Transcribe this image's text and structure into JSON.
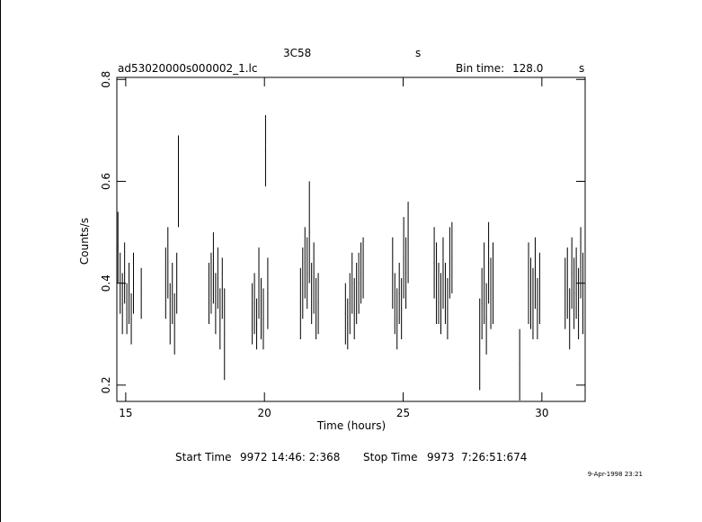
{
  "chart_data": {
    "type": "errorbar",
    "title": "3C58",
    "title_unit": "s",
    "file_name": "ad53020000s000002_1.lc",
    "bin_time_label": "Bin time:",
    "bin_time": "128.0",
    "bin_time_unit": "s",
    "x_label": "Time (hours)",
    "y_label": "Counts/s",
    "start_label": "Start Time",
    "start_time": "9972 14:46: 2:368",
    "stop_label": "Stop Time",
    "stop_time": "9973  7:26:51:674",
    "footer": "9-Apr-1998 23:21",
    "xlim": [
      14.68,
      31.56
    ],
    "ylim": [
      0.168,
      0.804
    ],
    "xticks": [
      15,
      20,
      25,
      30
    ],
    "yticks": [
      0.2,
      0.4,
      0.6,
      0.8
    ],
    "bin_width": 0.0356,
    "color": "#000000",
    "x": [
      14.72,
      14.8,
      14.88,
      14.96,
      15.04,
      15.12,
      15.2,
      15.28,
      15.56,
      16.44,
      16.52,
      16.6,
      16.68,
      16.76,
      16.84,
      16.9,
      18.0,
      18.08,
      18.16,
      18.24,
      18.32,
      18.4,
      18.48,
      18.56,
      19.56,
      19.64,
      19.72,
      19.8,
      19.88,
      19.96,
      20.04,
      20.12,
      21.3,
      21.38,
      21.46,
      21.54,
      21.62,
      21.7,
      21.78,
      21.86,
      21.94,
      22.92,
      23.0,
      23.08,
      23.16,
      23.24,
      23.32,
      23.4,
      23.48,
      23.56,
      24.62,
      24.7,
      24.78,
      24.86,
      24.94,
      25.02,
      25.1,
      25.18,
      26.12,
      26.2,
      26.28,
      26.36,
      26.44,
      26.52,
      26.6,
      26.68,
      26.76,
      27.76,
      27.84,
      27.92,
      28.0,
      28.08,
      28.16,
      28.24,
      29.2,
      29.52,
      29.6,
      29.68,
      29.76,
      29.84,
      29.92,
      30.84,
      30.92,
      31.0,
      31.08,
      31.16,
      31.24,
      31.32,
      31.4,
      31.48
    ],
    "values": [
      0.47,
      0.4,
      0.36,
      0.42,
      0.35,
      0.38,
      0.33,
      0.4,
      0.38,
      0.4,
      0.44,
      0.34,
      0.38,
      0.32,
      0.4,
      0.6,
      0.38,
      0.4,
      0.43,
      0.36,
      0.41,
      0.33,
      0.39,
      0.3,
      0.34,
      0.36,
      0.32,
      0.4,
      0.35,
      0.33,
      0.66,
      0.38,
      0.36,
      0.4,
      0.44,
      0.42,
      0.5,
      0.38,
      0.41,
      0.35,
      0.36,
      0.34,
      0.32,
      0.36,
      0.4,
      0.35,
      0.38,
      0.4,
      0.42,
      0.43,
      0.42,
      0.36,
      0.33,
      0.38,
      0.35,
      0.45,
      0.42,
      0.48,
      0.44,
      0.4,
      0.38,
      0.36,
      0.42,
      0.38,
      0.35,
      0.44,
      0.45,
      0.28,
      0.36,
      0.4,
      0.33,
      0.44,
      0.38,
      0.4,
      0.24,
      0.4,
      0.38,
      0.36,
      0.42,
      0.35,
      0.39,
      0.38,
      0.4,
      0.33,
      0.42,
      0.38,
      0.4,
      0.36,
      0.44,
      0.38
    ],
    "errors": [
      0.07,
      0.06,
      0.06,
      0.06,
      0.05,
      0.06,
      0.05,
      0.06,
      0.05,
      0.07,
      0.07,
      0.06,
      0.06,
      0.06,
      0.06,
      0.09,
      0.06,
      0.06,
      0.07,
      0.06,
      0.06,
      0.06,
      0.06,
      0.09,
      0.06,
      0.06,
      0.05,
      0.07,
      0.06,
      0.06,
      0.07,
      0.07,
      0.07,
      0.07,
      0.07,
      0.07,
      0.1,
      0.06,
      0.07,
      0.06,
      0.06,
      0.06,
      0.05,
      0.06,
      0.06,
      0.06,
      0.06,
      0.06,
      0.06,
      0.06,
      0.07,
      0.06,
      0.06,
      0.06,
      0.06,
      0.08,
      0.07,
      0.08,
      0.07,
      0.08,
      0.06,
      0.06,
      0.07,
      0.06,
      0.06,
      0.07,
      0.07,
      0.09,
      0.07,
      0.08,
      0.07,
      0.08,
      0.07,
      0.08,
      0.07,
      0.08,
      0.07,
      0.07,
      0.07,
      0.06,
      0.07,
      0.07,
      0.07,
      0.06,
      0.07,
      0.07,
      0.07,
      0.07,
      0.07,
      0.08
    ]
  }
}
